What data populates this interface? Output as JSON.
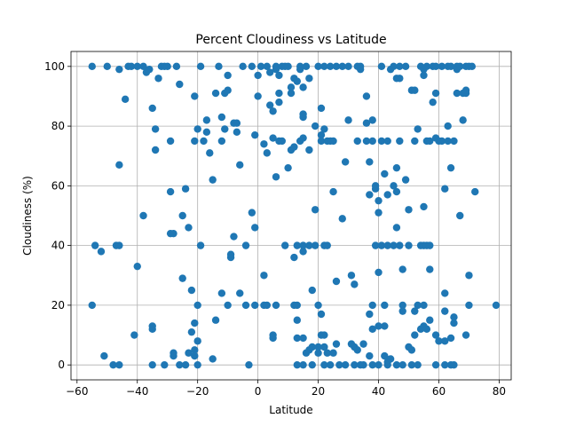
{
  "chart_data": {
    "type": "scatter",
    "title": "Percent Cloudiness vs Latitude",
    "xlabel": "Latitude",
    "ylabel": "Cloudiness (%)",
    "xlim": [
      -62,
      84
    ],
    "ylim": [
      -5,
      105
    ],
    "xticks": [
      -60,
      -40,
      -20,
      0,
      20,
      40,
      60,
      80
    ],
    "yticks": [
      0,
      20,
      40,
      60,
      80,
      100
    ],
    "grid": true,
    "point_color": "#1f77b4",
    "points": [
      [
        -55,
        100
      ],
      [
        -54,
        40
      ],
      [
        -55,
        20
      ],
      [
        -52,
        38
      ],
      [
        -51,
        3
      ],
      [
        -50,
        100
      ],
      [
        -48,
        0
      ],
      [
        -47,
        40
      ],
      [
        -46,
        99
      ],
      [
        -46,
        40
      ],
      [
        -46,
        67
      ],
      [
        -46,
        0
      ],
      [
        -44,
        89
      ],
      [
        -43,
        100
      ],
      [
        -42,
        100
      ],
      [
        -41,
        10
      ],
      [
        -40,
        33
      ],
      [
        -40,
        100
      ],
      [
        -38,
        50
      ],
      [
        -38,
        100
      ],
      [
        -37,
        98
      ],
      [
        -36,
        99
      ],
      [
        -35,
        86
      ],
      [
        -34,
        79
      ],
      [
        -34,
        72
      ],
      [
        -35,
        12
      ],
      [
        -35,
        13
      ],
      [
        -35,
        0
      ],
      [
        -33,
        96
      ],
      [
        -32,
        100
      ],
      [
        -31,
        0
      ],
      [
        -31,
        100
      ],
      [
        -30,
        100
      ],
      [
        -29,
        58
      ],
      [
        -29,
        44
      ],
      [
        -29,
        75
      ],
      [
        -28,
        44
      ],
      [
        -28,
        3
      ],
      [
        -28,
        4
      ],
      [
        -27,
        100
      ],
      [
        -26,
        94
      ],
      [
        -26,
        0
      ],
      [
        -25,
        29
      ],
      [
        -25,
        50
      ],
      [
        -24,
        59
      ],
      [
        -24,
        0
      ],
      [
        -23,
        46
      ],
      [
        -23,
        4
      ],
      [
        -22,
        25
      ],
      [
        -22,
        11
      ],
      [
        -21,
        90
      ],
      [
        -21,
        75
      ],
      [
        -21,
        14
      ],
      [
        -21,
        5
      ],
      [
        -21,
        3
      ],
      [
        -20,
        79
      ],
      [
        -20,
        20
      ],
      [
        -20,
        8
      ],
      [
        -19,
        40
      ],
      [
        -20,
        0
      ],
      [
        -19,
        100
      ],
      [
        -18,
        75
      ],
      [
        -17,
        82
      ],
      [
        -17,
        78
      ],
      [
        -16,
        71
      ],
      [
        -15,
        2
      ],
      [
        -15,
        62
      ],
      [
        -14,
        15
      ],
      [
        -14,
        91
      ],
      [
        -13,
        100
      ],
      [
        -12,
        24
      ],
      [
        -12,
        75
      ],
      [
        -12,
        83
      ],
      [
        -11,
        79
      ],
      [
        -11,
        91
      ],
      [
        -10,
        92
      ],
      [
        -10,
        97
      ],
      [
        -10,
        20
      ],
      [
        -9,
        36
      ],
      [
        -9,
        37
      ],
      [
        -8,
        43
      ],
      [
        -8,
        81
      ],
      [
        -7,
        81
      ],
      [
        -7,
        78
      ],
      [
        -6,
        67
      ],
      [
        -6,
        24
      ],
      [
        -5,
        100
      ],
      [
        -4,
        20
      ],
      [
        -4,
        40
      ],
      [
        -3,
        0
      ],
      [
        -2,
        51
      ],
      [
        -2,
        100
      ],
      [
        -1,
        77
      ],
      [
        -1,
        46
      ],
      [
        -1,
        20
      ],
      [
        0,
        90
      ],
      [
        0,
        97
      ],
      [
        1,
        100
      ],
      [
        2,
        74
      ],
      [
        2,
        30
      ],
      [
        2,
        20
      ],
      [
        3,
        71
      ],
      [
        3,
        100
      ],
      [
        3,
        20
      ],
      [
        4,
        98
      ],
      [
        4,
        87
      ],
      [
        5,
        85
      ],
      [
        5,
        76
      ],
      [
        5,
        9
      ],
      [
        5,
        10
      ],
      [
        6,
        100
      ],
      [
        6,
        99
      ],
      [
        6,
        63
      ],
      [
        6,
        20
      ],
      [
        7,
        75
      ],
      [
        7,
        88
      ],
      [
        7,
        91
      ],
      [
        7,
        97
      ],
      [
        8,
        75
      ],
      [
        8,
        100
      ],
      [
        9,
        100
      ],
      [
        9,
        40
      ],
      [
        10,
        66
      ],
      [
        10,
        100
      ],
      [
        11,
        93
      ],
      [
        11,
        91
      ],
      [
        11,
        72
      ],
      [
        12,
        73
      ],
      [
        12,
        96
      ],
      [
        12,
        36
      ],
      [
        12,
        20
      ],
      [
        13,
        20
      ],
      [
        13,
        40
      ],
      [
        13,
        15
      ],
      [
        13,
        9
      ],
      [
        13,
        0
      ],
      [
        13,
        95
      ],
      [
        14,
        75
      ],
      [
        14,
        100
      ],
      [
        14,
        99
      ],
      [
        15,
        76
      ],
      [
        15,
        40
      ],
      [
        15,
        38
      ],
      [
        15,
        83
      ],
      [
        15,
        84
      ],
      [
        15,
        93
      ],
      [
        15,
        0
      ],
      [
        15,
        9
      ],
      [
        16,
        4
      ],
      [
        16,
        100
      ],
      [
        17,
        72
      ],
      [
        17,
        96
      ],
      [
        17,
        40
      ],
      [
        17,
        5
      ],
      [
        18,
        25
      ],
      [
        18,
        6
      ],
      [
        18,
        0
      ],
      [
        19,
        52
      ],
      [
        19,
        80
      ],
      [
        19,
        40
      ],
      [
        20,
        4
      ],
      [
        20,
        100
      ],
      [
        20,
        6
      ],
      [
        20,
        20
      ],
      [
        21,
        77
      ],
      [
        21,
        75
      ],
      [
        21,
        86
      ],
      [
        21,
        17
      ],
      [
        21,
        10
      ],
      [
        22,
        79
      ],
      [
        22,
        40
      ],
      [
        22,
        100
      ],
      [
        22,
        0
      ],
      [
        22,
        6
      ],
      [
        22,
        10
      ],
      [
        23,
        40
      ],
      [
        23,
        75
      ],
      [
        23,
        4
      ],
      [
        24,
        75
      ],
      [
        24,
        100
      ],
      [
        24,
        0
      ],
      [
        25,
        75
      ],
      [
        25,
        58
      ],
      [
        25,
        4
      ],
      [
        26,
        100
      ],
      [
        26,
        28
      ],
      [
        26,
        7
      ],
      [
        27,
        0
      ],
      [
        28,
        100
      ],
      [
        28,
        49
      ],
      [
        29,
        68
      ],
      [
        29,
        0
      ],
      [
        30,
        100
      ],
      [
        30,
        82
      ],
      [
        31,
        30
      ],
      [
        31,
        7
      ],
      [
        32,
        27
      ],
      [
        32,
        6
      ],
      [
        32,
        0
      ],
      [
        33,
        100
      ],
      [
        33,
        75
      ],
      [
        33,
        5
      ],
      [
        34,
        99
      ],
      [
        34,
        100
      ],
      [
        34,
        0
      ],
      [
        35,
        7
      ],
      [
        35,
        0
      ],
      [
        36,
        90
      ],
      [
        36,
        81
      ],
      [
        36,
        75
      ],
      [
        37,
        68
      ],
      [
        37,
        57
      ],
      [
        37,
        17
      ],
      [
        37,
        3
      ],
      [
        38,
        75
      ],
      [
        38,
        20
      ],
      [
        38,
        0
      ],
      [
        38,
        12
      ],
      [
        38,
        82
      ],
      [
        39,
        60
      ],
      [
        39,
        59
      ],
      [
        39,
        40
      ],
      [
        40,
        55
      ],
      [
        40,
        51
      ],
      [
        40,
        31
      ],
      [
        40,
        13
      ],
      [
        40,
        0
      ],
      [
        41,
        75
      ],
      [
        41,
        100
      ],
      [
        41,
        40
      ],
      [
        42,
        13
      ],
      [
        42,
        64
      ],
      [
        42,
        3
      ],
      [
        42,
        20
      ],
      [
        43,
        0
      ],
      [
        43,
        57
      ],
      [
        43,
        40
      ],
      [
        43,
        75
      ],
      [
        43,
        1
      ],
      [
        44,
        99
      ],
      [
        44,
        2
      ],
      [
        45,
        100
      ],
      [
        45,
        60
      ],
      [
        45,
        40
      ],
      [
        46,
        96
      ],
      [
        46,
        66
      ],
      [
        46,
        58
      ],
      [
        46,
        46
      ],
      [
        46,
        0
      ],
      [
        47,
        100
      ],
      [
        47,
        96
      ],
      [
        47,
        75
      ],
      [
        47,
        40
      ],
      [
        48,
        18
      ],
      [
        48,
        32
      ],
      [
        48,
        20
      ],
      [
        48,
        0
      ],
      [
        49,
        62
      ],
      [
        49,
        100
      ],
      [
        50,
        52
      ],
      [
        50,
        6
      ],
      [
        50,
        40
      ],
      [
        51,
        92
      ],
      [
        51,
        0
      ],
      [
        51,
        5
      ],
      [
        52,
        92
      ],
      [
        52,
        75
      ],
      [
        52,
        18
      ],
      [
        52,
        10
      ],
      [
        53,
        79
      ],
      [
        53,
        20
      ],
      [
        53,
        0
      ],
      [
        54,
        100
      ],
      [
        54,
        40
      ],
      [
        54,
        12
      ],
      [
        55,
        99
      ],
      [
        55,
        97
      ],
      [
        55,
        53
      ],
      [
        55,
        40
      ],
      [
        55,
        20
      ],
      [
        55,
        13
      ],
      [
        56,
        75
      ],
      [
        56,
        100
      ],
      [
        56,
        40
      ],
      [
        56,
        12
      ],
      [
        57,
        32
      ],
      [
        57,
        40
      ],
      [
        57,
        15
      ],
      [
        57,
        75
      ],
      [
        58,
        100
      ],
      [
        58,
        88
      ],
      [
        59,
        100
      ],
      [
        59,
        91
      ],
      [
        59,
        76
      ],
      [
        59,
        10
      ],
      [
        59,
        0
      ],
      [
        60,
        8
      ],
      [
        60,
        75
      ],
      [
        61,
        100
      ],
      [
        61,
        75
      ],
      [
        62,
        59
      ],
      [
        62,
        24
      ],
      [
        62,
        18
      ],
      [
        62,
        8
      ],
      [
        62,
        0
      ],
      [
        63,
        100
      ],
      [
        63,
        80
      ],
      [
        63,
        75
      ],
      [
        64,
        9
      ],
      [
        64,
        0
      ],
      [
        64,
        66
      ],
      [
        64,
        100
      ],
      [
        65,
        75
      ],
      [
        65,
        0
      ],
      [
        65,
        14
      ],
      [
        65,
        16
      ],
      [
        66,
        100
      ],
      [
        66,
        99
      ],
      [
        66,
        91
      ],
      [
        67,
        50
      ],
      [
        67,
        100
      ],
      [
        68,
        82
      ],
      [
        68,
        91
      ],
      [
        69,
        10
      ],
      [
        69,
        100
      ],
      [
        69,
        91
      ],
      [
        69,
        92
      ],
      [
        70,
        30
      ],
      [
        70,
        20
      ],
      [
        70,
        100
      ],
      [
        71,
        100
      ],
      [
        72,
        58
      ],
      [
        79,
        20
      ]
    ]
  }
}
